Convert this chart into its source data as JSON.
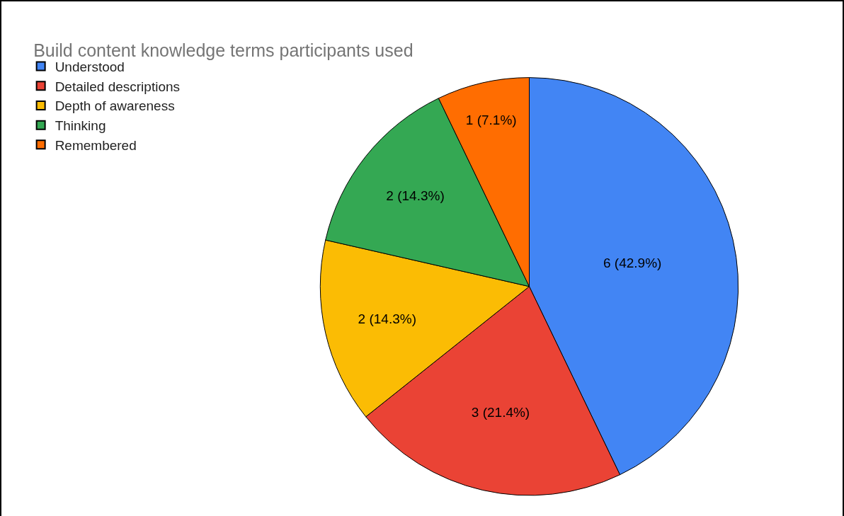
{
  "chart_data": {
    "type": "pie",
    "title": "Build content knowledge terms participants used",
    "categories": [
      "Understood",
      "Detailed descriptions",
      "Depth of awareness",
      "Thinking",
      "Remembered"
    ],
    "values": [
      6,
      3,
      2,
      2,
      1
    ],
    "colors": [
      "#4285f4",
      "#ea4335",
      "#fbbc04",
      "#34a853",
      "#ff6d01"
    ],
    "value_labels": [
      "6 (42.9%)",
      "3 (21.4%)",
      "2 (14.3%)",
      "2 (14.3%)",
      "1 (7.1%)"
    ],
    "legend": "top left"
  }
}
